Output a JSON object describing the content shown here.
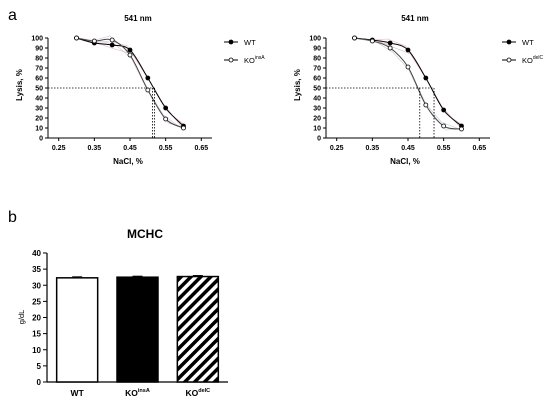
{
  "panels": {
    "a": "a",
    "b": "b"
  },
  "chart_data": [
    {
      "type": "line",
      "title": "541 nm",
      "xlabel": "NaCl, %",
      "ylabel": "Lysis, %",
      "xlim": [
        0.22,
        0.68
      ],
      "ylim": [
        0,
        100
      ],
      "xticks": [
        "0.25",
        "0.35",
        "0.45",
        "0.55",
        "0.65"
      ],
      "yticks": [
        "0",
        "10",
        "20",
        "30",
        "40",
        "50",
        "60",
        "70",
        "80",
        "90",
        "100"
      ],
      "legend_position": "top-right",
      "series": [
        {
          "name": "WT",
          "name_sup": "",
          "marker": "filled-circle",
          "color": "#000000",
          "x": [
            0.3,
            0.35,
            0.4,
            0.45,
            0.5,
            0.55,
            0.6
          ],
          "y": [
            100,
            95,
            93,
            88,
            60,
            30,
            12
          ]
        },
        {
          "name": "KO",
          "name_sup": "insA",
          "marker": "open-circle",
          "color": "#444444",
          "x": [
            0.3,
            0.35,
            0.4,
            0.45,
            0.5,
            0.55,
            0.6
          ],
          "y": [
            100,
            97,
            98,
            83,
            48,
            19,
            10
          ]
        }
      ],
      "reference_lines": {
        "y": 50,
        "x": [
          0.513,
          0.519
        ]
      }
    },
    {
      "type": "line",
      "title": "541 nm",
      "xlabel": "NaCl, %",
      "ylabel": "Lysis, %",
      "xlim": [
        0.22,
        0.68
      ],
      "ylim": [
        0,
        100
      ],
      "xticks": [
        "0.25",
        "0.35",
        "0.45",
        "0.55",
        "0.65"
      ],
      "yticks": [
        "0",
        "10",
        "20",
        "30",
        "40",
        "50",
        "60",
        "70",
        "80",
        "90",
        "100"
      ],
      "legend_position": "top-right",
      "series": [
        {
          "name": "WT",
          "name_sup": "",
          "marker": "filled-circle",
          "color": "#000000",
          "x": [
            0.3,
            0.35,
            0.4,
            0.45,
            0.5,
            0.55,
            0.6
          ],
          "y": [
            100,
            98,
            95,
            88,
            60,
            28,
            12
          ]
        },
        {
          "name": "KO",
          "name_sup": "delC",
          "marker": "open-circle",
          "color": "#444444",
          "x": [
            0.3,
            0.35,
            0.4,
            0.45,
            0.5,
            0.55,
            0.6
          ],
          "y": [
            100,
            97,
            90,
            71,
            33,
            12,
            9
          ]
        }
      ],
      "reference_lines": {
        "y": 50,
        "x": [
          0.483,
          0.523
        ]
      }
    },
    {
      "type": "bar",
      "title": "MCHC",
      "ylabel": "g/dL",
      "ylim": [
        0,
        40
      ],
      "yticks": [
        "0",
        "5",
        "10",
        "15",
        "20",
        "25",
        "30",
        "35",
        "40"
      ],
      "categories": [
        {
          "label": "WT",
          "sup": ""
        },
        {
          "label": "KO",
          "sup": "insA"
        },
        {
          "label": "KO",
          "sup": "delC"
        }
      ],
      "values": [
        32.3,
        32.5,
        32.7
      ],
      "fills": [
        "white",
        "black",
        "hatched"
      ]
    }
  ]
}
